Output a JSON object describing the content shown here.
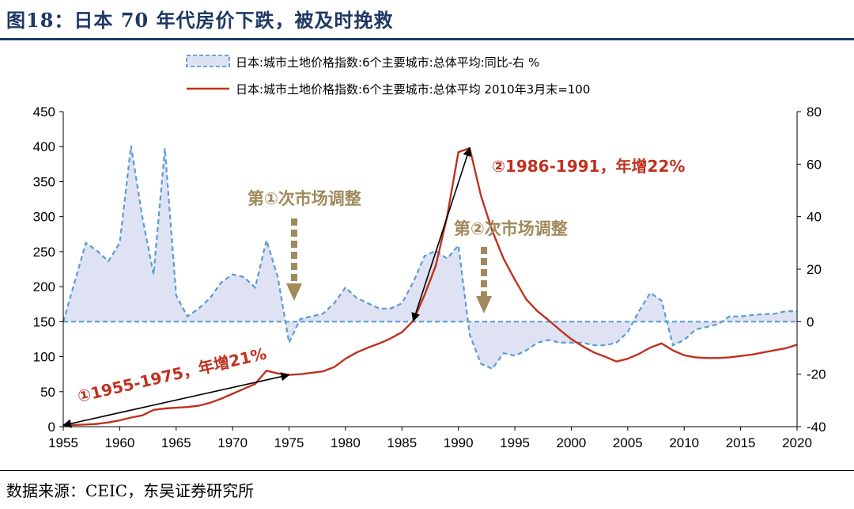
{
  "figure": {
    "title": "图18：日本 70 年代房价下跌，被及时挽救",
    "source": "数据来源：CEIC，东吴证券研究所"
  },
  "colors": {
    "title": "#1f3864",
    "yoy_line": "#5b9bd5",
    "yoy_fill": "#dfe2f2",
    "index_line": "#c0311f",
    "annotation_red": "#c0311f",
    "annotation_brown": "#a08a5c",
    "arrow_black": "#000000"
  },
  "chart_data": {
    "type": "line",
    "x_range": [
      1955,
      2020
    ],
    "x_ticks": [
      1955,
      1960,
      1965,
      1970,
      1975,
      1980,
      1985,
      1990,
      1995,
      2000,
      2005,
      2010,
      2015,
      2020
    ],
    "y_left": {
      "range": [
        0,
        450
      ],
      "ticks": [
        0,
        50,
        100,
        150,
        200,
        250,
        300,
        350,
        400,
        450
      ]
    },
    "y_right": {
      "range": [
        -40,
        80
      ],
      "ticks": [
        -40,
        -20,
        0,
        20,
        40,
        60,
        80
      ]
    },
    "grid": false,
    "legend": {
      "position": "top",
      "entries": [
        {
          "series": "yoy",
          "label": "日本:城市土地价格指数:6个主要城市:总体平均:同比-右 %"
        },
        {
          "series": "index",
          "label": "日本:城市土地价格指数:6个主要城市:总体平均 2010年3月末=100"
        }
      ]
    },
    "series": [
      {
        "id": "yoy",
        "name": "日本:城市土地价格指数:6个主要城市:总体平均:同比-右 %",
        "axis": "right",
        "style": "dashed area",
        "x": [
          1955,
          1956,
          1957,
          1958,
          1959,
          1960,
          1961,
          1962,
          1963,
          1964,
          1965,
          1966,
          1967,
          1968,
          1969,
          1970,
          1971,
          1972,
          1973,
          1974,
          1975,
          1976,
          1977,
          1978,
          1979,
          1980,
          1981,
          1982,
          1983,
          1984,
          1985,
          1986,
          1987,
          1988,
          1989,
          1990,
          1991,
          1992,
          1993,
          1994,
          1995,
          1996,
          1997,
          1998,
          1999,
          2000,
          2001,
          2002,
          2003,
          2004,
          2005,
          2006,
          2007,
          2008,
          2009,
          2010,
          2011,
          2012,
          2013,
          2014,
          2015,
          2016,
          2017,
          2018,
          2019,
          2020
        ],
        "y": [
          0,
          15,
          30,
          27,
          23,
          30,
          67,
          40,
          18,
          66,
          10,
          2,
          5,
          9,
          15,
          18,
          17,
          13,
          31,
          17,
          -8,
          1,
          2,
          3,
          7,
          13,
          9,
          7,
          5,
          5,
          7,
          15,
          25,
          27,
          24,
          29,
          -5,
          -16,
          -18,
          -12,
          -13,
          -11,
          -8,
          -7,
          -8,
          -8,
          -8,
          -9,
          -9,
          -8,
          -4,
          4,
          11,
          8,
          -9,
          -7,
          -3,
          -2,
          -1,
          2,
          2,
          2.5,
          2.8,
          3,
          4,
          4
        ]
      },
      {
        "id": "index",
        "name": "日本:城市土地价格指数:6个主要城市:总体平均 2010年3月末=100",
        "axis": "left",
        "style": "solid line",
        "x": [
          1955,
          1956,
          1957,
          1958,
          1959,
          1960,
          1961,
          1962,
          1963,
          1964,
          1965,
          1966,
          1967,
          1968,
          1969,
          1970,
          1971,
          1972,
          1973,
          1974,
          1975,
          1976,
          1977,
          1978,
          1979,
          1980,
          1981,
          1982,
          1983,
          1984,
          1985,
          1986,
          1987,
          1988,
          1989,
          1990,
          1991,
          1992,
          1993,
          1994,
          1995,
          1996,
          1997,
          1998,
          1999,
          2000,
          2001,
          2002,
          2003,
          2004,
          2005,
          2006,
          2007,
          2008,
          2009,
          2010,
          2011,
          2012,
          2013,
          2014,
          2015,
          2016,
          2017,
          2018,
          2019,
          2020
        ],
        "y": [
          2,
          2.5,
          3,
          4,
          6,
          9,
          13,
          16,
          24,
          26,
          27,
          28,
          30,
          34,
          40,
          47,
          54,
          61,
          80,
          76,
          74,
          75,
          77,
          79,
          85,
          97,
          106,
          113,
          119,
          126,
          135,
          151,
          188,
          230,
          300,
          392,
          398,
          330,
          280,
          240,
          210,
          182,
          165,
          152,
          138,
          125,
          115,
          106,
          100,
          93,
          97,
          104,
          113,
          119,
          109,
          102,
          99,
          98,
          98,
          99,
          101,
          103,
          106,
          109,
          112,
          117
        ]
      }
    ],
    "annotations": [
      {
        "id": "period1",
        "text": "①1955-1975，年增21%",
        "from": [
          1955,
          2
        ],
        "to": [
          1975,
          74
        ]
      },
      {
        "id": "period2",
        "text": "②1986-1991，年增22%",
        "from": [
          1986,
          151
        ],
        "to": [
          1991,
          398
        ]
      },
      {
        "id": "adj1",
        "text": "第①次市场调整",
        "at_year": 1975
      },
      {
        "id": "adj2",
        "text": "第②次市场调整",
        "at_year": 1993
      }
    ]
  }
}
